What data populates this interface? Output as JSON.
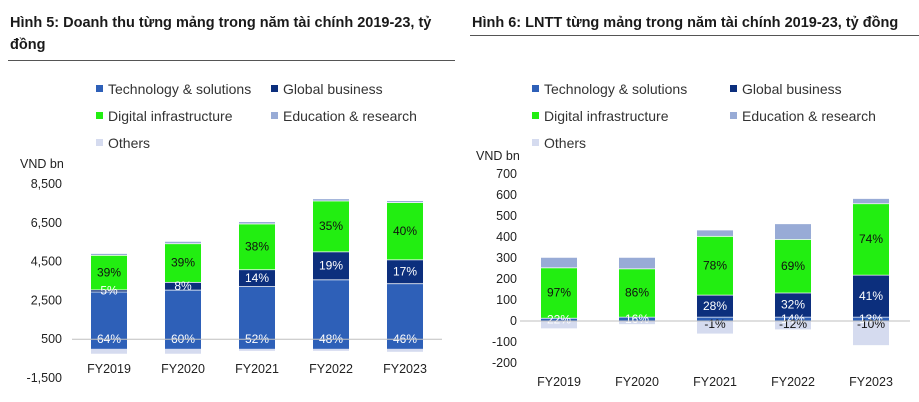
{
  "colors": {
    "tech": "#2e60b8",
    "global": "#0c2f7d",
    "digital": "#22ee11",
    "education": "#98abd6",
    "others": "#d5dbef"
  },
  "chart_data": [
    {
      "type": "bar",
      "stacked": true,
      "title": "Hình 5: Doanh thu từng mảng trong năm tài chính 2019-23, tỷ đồng",
      "ylabel": "VND bn",
      "ylim": [
        -1500,
        8500
      ],
      "yticks": [
        "8,500",
        "6,500",
        "4,500",
        "2,500",
        "500",
        "-1,500"
      ],
      "ytick_values": [
        8500,
        6500,
        4500,
        2500,
        500,
        -1500
      ],
      "categories": [
        "FY2019",
        "FY2020",
        "FY2021",
        "FY2022",
        "FY2023"
      ],
      "legend": [
        "Technology & solutions",
        "Global business",
        "Digital infrastructure",
        "Education & research",
        "Others"
      ],
      "series": [
        {
          "name": "Technology & solutions",
          "color_key": "tech",
          "values": [
            2950,
            3050,
            3230,
            3580,
            3380
          ],
          "labels": [
            "64%",
            "60%",
            "52%",
            "48%",
            "46%"
          ]
        },
        {
          "name": "Global business",
          "color_key": "global",
          "values": [
            110,
            400,
            870,
            1440,
            1230
          ],
          "labels": [
            "5%",
            "8%",
            "14%",
            "19%",
            "17%"
          ]
        },
        {
          "name": "Digital infrastructure",
          "color_key": "digital",
          "values": [
            1780,
            1990,
            2360,
            2620,
            2950
          ],
          "labels": [
            "39%",
            "39%",
            "38%",
            "35%",
            "40%"
          ]
        },
        {
          "name": "Education & research",
          "color_key": "education",
          "values": [
            100,
            120,
            120,
            120,
            100
          ],
          "labels": [
            "",
            "",
            "",
            "",
            ""
          ]
        },
        {
          "name": "Others",
          "color_key": "others",
          "values": [
            -250,
            -250,
            -100,
            -100,
            -150
          ],
          "labels": [
            "",
            "",
            "",
            "",
            ""
          ]
        }
      ]
    },
    {
      "type": "bar",
      "stacked": true,
      "title": "Hình 6: LNTT từng mảng trong năm tài chính 2019-23, tỷ đồng",
      "ylabel": "VND bn",
      "ylim": [
        -200,
        700
      ],
      "yticks": [
        "700",
        "600",
        "500",
        "400",
        "300",
        "200",
        "100",
        "0",
        "-100",
        "-200"
      ],
      "ytick_values": [
        700,
        600,
        500,
        400,
        300,
        200,
        100,
        0,
        -100,
        -200
      ],
      "categories": [
        "FY2019",
        "FY2020",
        "FY2021",
        "FY2022",
        "FY2023"
      ],
      "legend": [
        "Technology & solutions",
        "Global business",
        "Digital infrastructure",
        "Education & research",
        "Others"
      ],
      "series": [
        {
          "name": "Technology & solutions",
          "color_key": "tech",
          "values": [
            15,
            20,
            20,
            20,
            20
          ],
          "labels": [
            "22%",
            "16%",
            "",
            "14%",
            "13%"
          ]
        },
        {
          "name": "Global business",
          "color_key": "global",
          "values": [
            0,
            0,
            105,
            115,
            200
          ],
          "labels": [
            "",
            "",
            "28%",
            "32%",
            "41%"
          ]
        },
        {
          "name": "Digital infrastructure",
          "color_key": "digital",
          "values": [
            240,
            230,
            280,
            255,
            340
          ],
          "labels": [
            "97%",
            "86%",
            "78%",
            "69%",
            "74%"
          ]
        },
        {
          "name": "Education & research",
          "color_key": "education",
          "values": [
            50,
            55,
            30,
            75,
            25
          ],
          "labels": [
            "",
            "",
            "",
            "",
            ""
          ]
        },
        {
          "name": "Others",
          "color_key": "others",
          "values": [
            -35,
            -15,
            -60,
            -40,
            -115
          ],
          "labels": [
            "",
            "",
            "-1%",
            "-12%",
            "-10%"
          ]
        }
      ]
    }
  ]
}
